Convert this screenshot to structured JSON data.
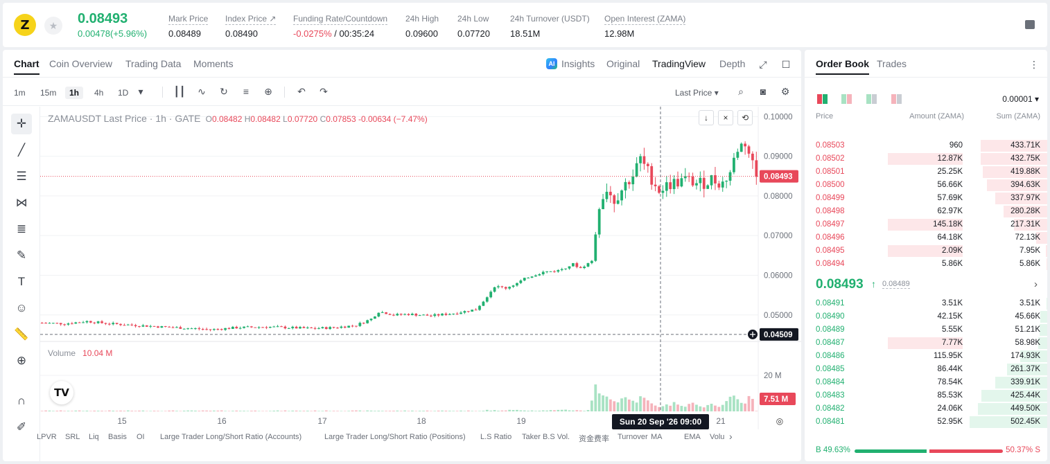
{
  "ticker": {
    "logo_letter": "Z",
    "last_price": "0.08493",
    "change": "0.00478(+5.96%)",
    "stats": [
      {
        "label": "Mark Price",
        "value": "0.08489"
      },
      {
        "label": "Index Price ↗",
        "value": "0.08490"
      },
      {
        "label": "Funding Rate/Countdown",
        "value_red": "-0.0275%",
        "value": " / 00:35:24"
      },
      {
        "label": "24h High",
        "value": "0.09600"
      },
      {
        "label": "24h Low",
        "value": "0.07720"
      },
      {
        "label": "24h Turnover (USDT)",
        "value": "18.51M"
      },
      {
        "label": "Open Interest (ZAMA)",
        "value": "12.98M"
      }
    ]
  },
  "chart_tabs": [
    "Chart",
    "Coin Overview",
    "Trading Data",
    "Moments"
  ],
  "view_tabs": {
    "ai": "AI",
    "insights": "Insights",
    "original": "Original",
    "tradingview": "TradingView",
    "depth": "Depth"
  },
  "timeframes": [
    "1m",
    "15m",
    "1h",
    "4h",
    "1D"
  ],
  "price_type": "Last Price ▾",
  "legend": {
    "symbol": "ZAMAUSDT Last Price · 1h · GATE",
    "o_label": "O",
    "o": "0.08482",
    "h_label": "H",
    "h": "0.08482",
    "l_label": "L",
    "l": "0.07720",
    "c_label": "C",
    "c": "0.07853",
    "chg": "-0.00634 (−7.47%)"
  },
  "volume_legend": {
    "label": "Volume",
    "value": "10.04 M"
  },
  "indicators": [
    "LPVR",
    "SRL",
    "Liq",
    "Basis",
    "OI",
    "Large Trader Long/Short Ratio (Accounts)",
    "Large Trader Long/Short Ratio (Positions)",
    "L.S Ratio",
    "Taker B.S Vol.",
    "资金费率",
    "Turnover",
    "MA",
    "EMA",
    "Volu"
  ],
  "tv_logo": "TV",
  "colors": {
    "up": "#21b070",
    "down": "#e8485a"
  },
  "chart_data": {
    "type": "candlestick",
    "price_axis_ticks": [
      "0.10000",
      "0.09000",
      "0.08000",
      "0.07000",
      "0.06000",
      "0.05000"
    ],
    "ylim": [
      0.0435,
      0.1025
    ],
    "volume_axis_ticks": [
      "20 M"
    ],
    "time_axis_ticks": [
      "15",
      "16",
      "17",
      "18",
      "19",
      "21"
    ],
    "crosshair_time_label": "Sun 20 Sep '26   09:00",
    "last_price_label": "0.08493",
    "last_price": 0.08493,
    "crosshair_price_label": "0.04509",
    "crosshair_price": 0.04509,
    "volume_label": "7.51 M",
    "volume_last": 7.51,
    "close_path": [
      [
        0,
        0.048
      ],
      [
        6,
        0.0478
      ],
      [
        12,
        0.0484
      ],
      [
        18,
        0.0478
      ],
      [
        25,
        0.0474
      ],
      [
        32,
        0.047
      ],
      [
        40,
        0.0466
      ],
      [
        45,
        0.0463
      ],
      [
        52,
        0.0468
      ],
      [
        60,
        0.047
      ],
      [
        66,
        0.0468
      ],
      [
        72,
        0.0466
      ],
      [
        78,
        0.0468
      ],
      [
        84,
        0.0474
      ],
      [
        88,
        0.049
      ],
      [
        90,
        0.0508
      ],
      [
        92,
        0.0505
      ],
      [
        94,
        0.05
      ],
      [
        98,
        0.0502
      ],
      [
        104,
        0.0498
      ],
      [
        110,
        0.0504
      ],
      [
        116,
        0.0514
      ],
      [
        118,
        0.0535
      ],
      [
        121,
        0.0572
      ],
      [
        124,
        0.0568
      ],
      [
        127,
        0.058
      ],
      [
        130,
        0.0596
      ],
      [
        134,
        0.0608
      ],
      [
        138,
        0.0612
      ],
      [
        142,
        0.0628
      ],
      [
        144,
        0.0618
      ],
      [
        147,
        0.0636
      ],
      [
        149,
        0.078
      ],
      [
        151,
        0.082
      ],
      [
        153,
        0.079
      ],
      [
        156,
        0.083
      ],
      [
        158,
        0.0852
      ],
      [
        160,
        0.0892
      ],
      [
        162,
        0.086
      ],
      [
        165,
        0.0815
      ],
      [
        168,
        0.083
      ],
      [
        172,
        0.084
      ],
      [
        176,
        0.083
      ],
      [
        179,
        0.0842
      ],
      [
        182,
        0.0832
      ],
      [
        184,
        0.086
      ],
      [
        186,
        0.092
      ],
      [
        188,
        0.0935
      ],
      [
        190,
        0.0882
      ],
      [
        191,
        0.0849
      ]
    ],
    "volume_spikes": [
      [
        147,
        6.5
      ],
      [
        148,
        16.2
      ],
      [
        149,
        10.8
      ],
      [
        150,
        9.6
      ],
      [
        151,
        8.9
      ],
      [
        152,
        7.2
      ],
      [
        153,
        6.1
      ],
      [
        154,
        5.4
      ],
      [
        155,
        7.8
      ],
      [
        156,
        8.5
      ],
      [
        157,
        7.1
      ],
      [
        158,
        6.4
      ],
      [
        159,
        5.3
      ],
      [
        160,
        9.1
      ],
      [
        161,
        8.2
      ],
      [
        162,
        6.6
      ],
      [
        163,
        4.8
      ],
      [
        164,
        3.5
      ],
      [
        165,
        2.6
      ],
      [
        166,
        3.1
      ],
      [
        167,
        4.2
      ],
      [
        168,
        3.4
      ],
      [
        169,
        5.6
      ],
      [
        170,
        4.1
      ],
      [
        171,
        3.3
      ],
      [
        172,
        2.8
      ],
      [
        173,
        4.5
      ],
      [
        174,
        5.2
      ],
      [
        175,
        4.0
      ],
      [
        176,
        3.0
      ],
      [
        177,
        2.4
      ],
      [
        178,
        3.8
      ],
      [
        179,
        4.6
      ],
      [
        180,
        3.5
      ],
      [
        181,
        2.7
      ],
      [
        182,
        3.9
      ],
      [
        183,
        6.2
      ],
      [
        184,
        8.8
      ],
      [
        185,
        9.5
      ],
      [
        186,
        7.3
      ],
      [
        187,
        5.1
      ],
      [
        188,
        4.7
      ],
      [
        189,
        9.2
      ],
      [
        190,
        7.51
      ]
    ]
  },
  "order_book": {
    "tabs": [
      "Order Book",
      "Trades"
    ],
    "precision": "0.00001 ▾",
    "col_price": "Price",
    "col_amount": "Amount (ZAMA)",
    "col_sum": "Sum (ZAMA)",
    "asks": [
      {
        "price": "0.08503",
        "amount": "960",
        "sum": "433.71K",
        "amt_frac": 0.0,
        "sum_frac": 0.86
      },
      {
        "price": "0.08502",
        "amount": "12.87K",
        "sum": "432.75K",
        "amt_frac": 0.89,
        "sum_frac": 0.86
      },
      {
        "price": "0.08501",
        "amount": "25.25K",
        "sum": "419.88K",
        "amt_frac": 0.0,
        "sum_frac": 0.83
      },
      {
        "price": "0.08500",
        "amount": "56.66K",
        "sum": "394.63K",
        "amt_frac": 0.0,
        "sum_frac": 0.78
      },
      {
        "price": "0.08499",
        "amount": "57.69K",
        "sum": "337.97K",
        "amt_frac": 0.0,
        "sum_frac": 0.67
      },
      {
        "price": "0.08498",
        "amount": "62.97K",
        "sum": "280.28K",
        "amt_frac": 0.0,
        "sum_frac": 0.56
      },
      {
        "price": "0.08497",
        "amount": "145.18K",
        "sum": "217.31K",
        "amt_frac": 0.89,
        "sum_frac": 0.43
      },
      {
        "price": "0.08496",
        "amount": "64.18K",
        "sum": "72.13K",
        "amt_frac": 0.0,
        "sum_frac": 0.14
      },
      {
        "price": "0.08495",
        "amount": "2.09K",
        "sum": "7.95K",
        "amt_frac": 0.78,
        "sum_frac": 0.02
      },
      {
        "price": "0.08494",
        "amount": "5.86K",
        "sum": "5.86K",
        "amt_frac": 0.0,
        "sum_frac": 0.01
      }
    ],
    "mid_price": "0.08493",
    "mid_arrow": "↑",
    "mid_mark": "0.08489",
    "mid_chevron": "›",
    "bids": [
      {
        "price": "0.08491",
        "amount": "3.51K",
        "sum": "3.51K",
        "amt_frac": 0.0,
        "sum_frac": 0.01
      },
      {
        "price": "0.08490",
        "amount": "42.15K",
        "sum": "45.66K",
        "amt_frac": 0.0,
        "sum_frac": 0.09
      },
      {
        "price": "0.08489",
        "amount": "5.55K",
        "sum": "51.21K",
        "amt_frac": 0.0,
        "sum_frac": 0.1
      },
      {
        "price": "0.08487",
        "amount": "7.77K",
        "sum": "58.98K",
        "amt_frac": 0.89,
        "sum_frac": 0.12,
        "amt_red": true
      },
      {
        "price": "0.08486",
        "amount": "115.95K",
        "sum": "174.93K",
        "amt_frac": 0.0,
        "sum_frac": 0.35
      },
      {
        "price": "0.08485",
        "amount": "86.44K",
        "sum": "261.37K",
        "amt_frac": 0.0,
        "sum_frac": 0.52
      },
      {
        "price": "0.08484",
        "amount": "78.54K",
        "sum": "339.91K",
        "amt_frac": 0.0,
        "sum_frac": 0.67
      },
      {
        "price": "0.08483",
        "amount": "85.53K",
        "sum": "425.44K",
        "amt_frac": 0.0,
        "sum_frac": 0.85
      },
      {
        "price": "0.08482",
        "amount": "24.06K",
        "sum": "449.50K",
        "amt_frac": 0.0,
        "sum_frac": 0.89
      },
      {
        "price": "0.08481",
        "amount": "52.95K",
        "sum": "502.45K",
        "amt_frac": 0.0,
        "sum_frac": 1.0
      }
    ],
    "buy_ratio": "B 49.63%",
    "sell_ratio": "50.37% S"
  }
}
